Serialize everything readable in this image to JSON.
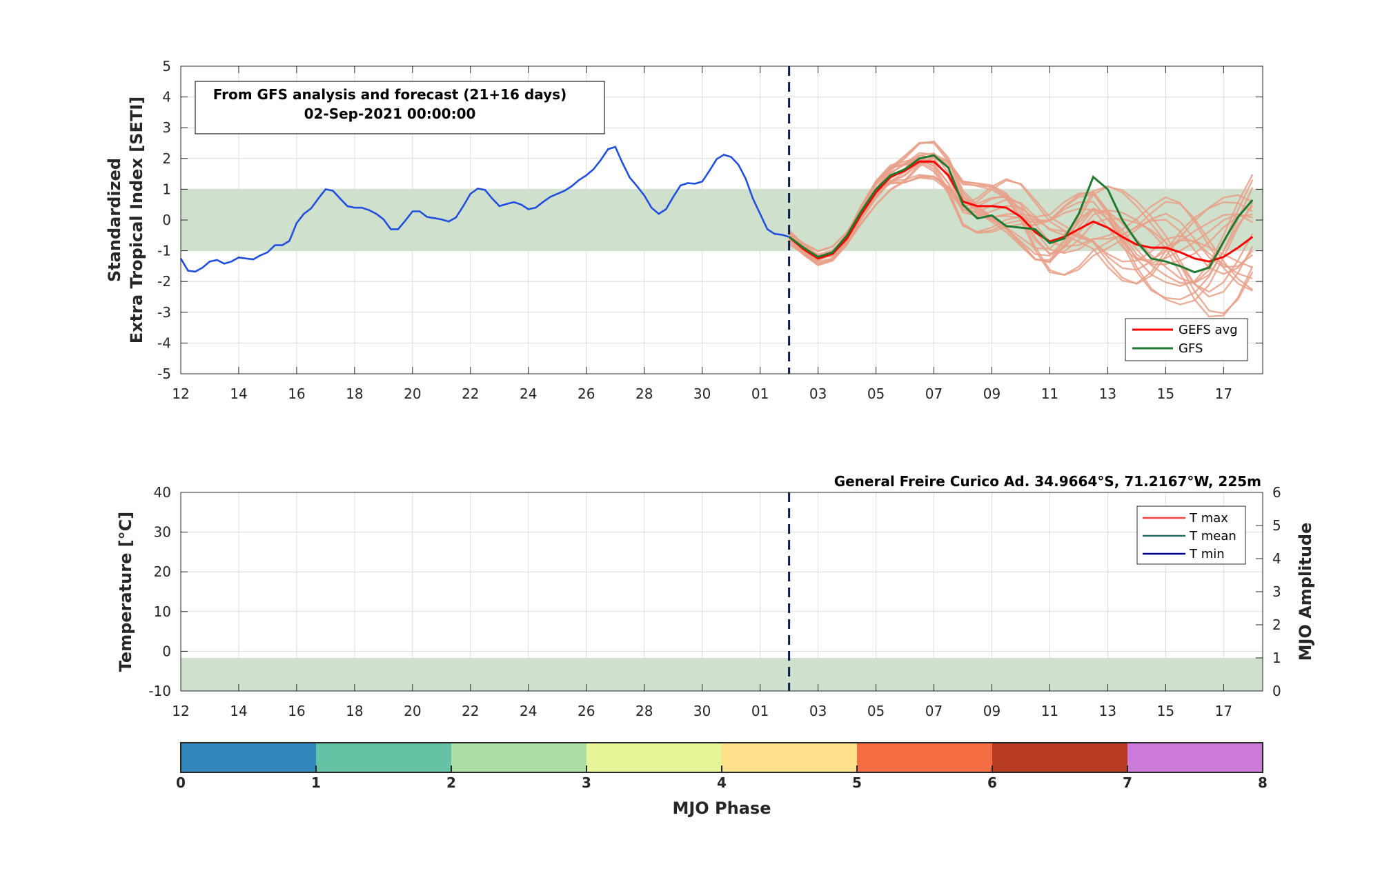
{
  "chart_data": [
    {
      "type": "line",
      "ylabel_line1": "Standardized",
      "ylabel_line2": "Extra Tropical Index [SETI]",
      "ylim": [
        -5,
        5
      ],
      "yticks": [
        "5",
        "4",
        "3",
        "2",
        "1",
        "0",
        "-1",
        "-2",
        "-3",
        "-4",
        "-5"
      ],
      "xticks": [
        "12",
        "14",
        "16",
        "18",
        "20",
        "22",
        "24",
        "26",
        "28",
        "30",
        "01",
        "03",
        "05",
        "07",
        "09",
        "11",
        "13",
        "15",
        "17"
      ],
      "grid": true,
      "band": [
        -1,
        1
      ],
      "forecast_start_day": 21,
      "annotation": {
        "line1": "From GFS analysis and forecast (21+16 days)",
        "line2": "02-Sep-2021 00:00:00"
      },
      "legend": [
        "GEFS avg",
        "GFS"
      ],
      "colors": {
        "analysis": "#1f4ee0",
        "gefs_avg": "#ff0000",
        "gfs": "#1e7a2e",
        "members": "#e8a088",
        "band": "#cfe0cc",
        "cutoff": "#0b1a4a"
      },
      "series": {
        "analysis": {
          "x": [
            0,
            0.25,
            0.5,
            0.75,
            1,
            1.25,
            1.5,
            1.75,
            2,
            2.25,
            2.5,
            2.75,
            3,
            3.25,
            3.5,
            3.75,
            4,
            4.25,
            4.5,
            4.75,
            5,
            5.25,
            5.5,
            5.75,
            6,
            6.25,
            6.5,
            6.75,
            7,
            7.25,
            7.5,
            7.75,
            8,
            8.25,
            8.5,
            8.75,
            9,
            9.25,
            9.5,
            9.75,
            10,
            10.25,
            10.5,
            10.75,
            11,
            11.25,
            11.5,
            11.75,
            12,
            12.25,
            12.5,
            12.75,
            13,
            13.25,
            13.5,
            13.75,
            14,
            14.25,
            14.5,
            14.75,
            15,
            15.25,
            15.5,
            15.75,
            16,
            16.25,
            16.5,
            16.75,
            17,
            17.25,
            17.5,
            17.75,
            18,
            18.25,
            18.5,
            18.75,
            19,
            19.25,
            19.5,
            19.75,
            20,
            20.25,
            20.5,
            20.75,
            21
          ],
          "y": [
            -1.25,
            -1.65,
            -1.68,
            -1.55,
            -1.35,
            -1.3,
            -1.42,
            -1.35,
            -1.22,
            -1.25,
            -1.28,
            -1.15,
            -1.05,
            -0.82,
            -0.82,
            -0.68,
            -0.1,
            0.2,
            0.38,
            0.7,
            1.0,
            0.95,
            0.7,
            0.45,
            0.4,
            0.4,
            0.32,
            0.2,
            0.02,
            -0.3,
            -0.3,
            -0.02,
            0.28,
            0.28,
            0.1,
            0.06,
            0.02,
            -0.05,
            0.08,
            0.45,
            0.85,
            1.02,
            0.98,
            0.7,
            0.45,
            0.52,
            0.58,
            0.5,
            0.35,
            0.4,
            0.58,
            0.75,
            0.85,
            0.95,
            1.1,
            1.3,
            1.45,
            1.65,
            1.95,
            2.3,
            2.38,
            1.85,
            1.38,
            1.1,
            0.8,
            0.4,
            0.2,
            0.35,
            0.75,
            1.12,
            1.2,
            1.18,
            1.25,
            1.6,
            1.98,
            2.12,
            2.05,
            1.8,
            1.35,
            0.7,
            0.2,
            -0.3,
            -0.45,
            -0.48,
            -0.55
          ]
        },
        "gefs_avg": {
          "x": [
            21,
            21.5,
            22,
            22.5,
            23,
            23.5,
            24,
            24.5,
            25,
            25.5,
            26,
            26.5,
            27,
            27.5,
            28,
            28.5,
            29,
            29.5,
            30,
            30.5,
            31,
            31.5,
            32,
            32.5,
            33,
            33.5,
            34,
            34.5,
            35,
            35.5,
            36,
            36.5,
            37
          ],
          "y": [
            -0.55,
            -0.95,
            -1.25,
            -1.1,
            -0.6,
            0.2,
            0.9,
            1.4,
            1.6,
            1.9,
            1.9,
            1.45,
            0.6,
            0.45,
            0.45,
            0.4,
            0.1,
            -0.4,
            -0.7,
            -0.55,
            -0.3,
            -0.05,
            -0.25,
            -0.55,
            -0.8,
            -0.9,
            -0.9,
            -1.05,
            -1.25,
            -1.35,
            -1.2,
            -0.9,
            -0.55
          ]
        },
        "gfs": {
          "x": [
            21,
            21.5,
            22,
            22.5,
            23,
            23.5,
            24,
            24.5,
            25,
            25.5,
            26,
            26.5,
            27,
            27.5,
            28,
            28.5,
            29,
            29.5,
            30,
            30.5,
            31,
            31.5,
            32,
            32.5,
            33,
            33.5,
            34,
            34.5,
            35,
            35.5,
            36,
            36.5,
            37
          ],
          "y": [
            -0.55,
            -0.9,
            -1.2,
            -1.05,
            -0.5,
            0.3,
            1.0,
            1.45,
            1.65,
            2.0,
            2.1,
            1.7,
            0.5,
            0.05,
            0.15,
            -0.2,
            -0.25,
            -0.3,
            -0.75,
            -0.6,
            0.2,
            1.4,
            1.0,
            0.0,
            -0.7,
            -1.25,
            -1.35,
            -1.5,
            -1.7,
            -1.55,
            -0.7,
            0.1,
            0.65
          ]
        }
      }
    },
    {
      "type": "line",
      "ylabel_left": "Temperature [°C]",
      "ylabel_right": "MJO Amplitude",
      "ylim": [
        -10,
        40
      ],
      "yticks": [
        "40",
        "30",
        "20",
        "10",
        "0",
        "-10"
      ],
      "ylim_right": [
        0,
        6
      ],
      "yticks_right": [
        "6",
        "5",
        "4",
        "3",
        "2",
        "1",
        "0"
      ],
      "xticks": [
        "12",
        "14",
        "16",
        "18",
        "20",
        "22",
        "24",
        "26",
        "28",
        "30",
        "01",
        "03",
        "05",
        "07",
        "09",
        "11",
        "13",
        "15",
        "17"
      ],
      "grid": true,
      "band_right": [
        0,
        1
      ],
      "forecast_start_day": 21,
      "title": "General Freire Curico Ad. 34.9664°S, 71.2167°W, 225m",
      "legend": [
        "T max",
        "T mean",
        "T min"
      ],
      "colors": {
        "tmax": "#ff4040",
        "tmean": "#2a6b68",
        "tmin": "#00008b",
        "band": "#cfe0cc",
        "cutoff": "#0b1a4a"
      }
    },
    {
      "type": "colorbar",
      "label": "MJO Phase",
      "ticks": [
        "0",
        "1",
        "2",
        "3",
        "4",
        "5",
        "6",
        "7",
        "8"
      ],
      "colors": [
        "#3288bd",
        "#66c2a5",
        "#abdda4",
        "#e6f598",
        "#fee08b",
        "#f46d43",
        "#b73b22",
        "#cc7ad8"
      ]
    }
  ]
}
